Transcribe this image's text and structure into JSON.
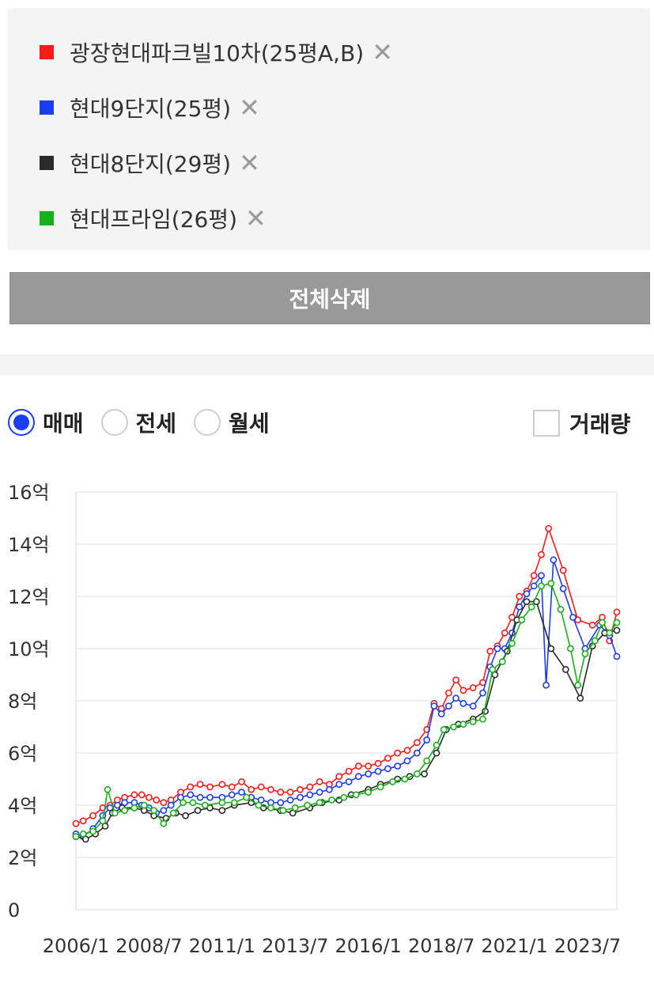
{
  "legend": {
    "items": [
      {
        "label": "광장현대파크빌10차(25평A,B)",
        "color": "#ff1a1a",
        "close_icon": "close-x-icon"
      },
      {
        "label": "현대9단지(25평)",
        "color": "#1b3df0",
        "close_icon": "close-x-icon"
      },
      {
        "label": "현대8단지(29평)",
        "color": "#2a2a2a",
        "close_icon": "close-x-icon"
      },
      {
        "label": "현대프라임(26평)",
        "color": "#19b019",
        "close_icon": "close-x-icon"
      }
    ],
    "close_glyph": "✕"
  },
  "delete_all_label": "전체삭제",
  "deal_types": [
    {
      "label": "매매",
      "checked": true
    },
    {
      "label": "전세",
      "checked": false
    },
    {
      "label": "월세",
      "checked": false
    }
  ],
  "volume_label": "거래량",
  "chart_data": {
    "type": "line",
    "y_ticks": [
      "0",
      "2억",
      "4억",
      "6억",
      "8억",
      "10억",
      "12억",
      "14억",
      "16억"
    ],
    "x_ticks": [
      "2006/1",
      "2008/7",
      "2011/1",
      "2013/7",
      "2016/1",
      "2018/7",
      "2021/1",
      "2023/7"
    ],
    "ylim": [
      0,
      16
    ],
    "xlim": [
      "2006/1",
      "2024/7"
    ],
    "grid": true,
    "marker": "circle",
    "series": [
      {
        "name": "광장현대파크빌10차(25평A,B)",
        "color": "#ff1a1a",
        "points": [
          [
            "2006/1",
            3.3
          ],
          [
            "2006/4",
            3.4
          ],
          [
            "2006/8",
            3.6
          ],
          [
            "2006/12",
            3.9
          ],
          [
            "2007/3",
            4.0
          ],
          [
            "2007/6",
            4.2
          ],
          [
            "2007/9",
            4.3
          ],
          [
            "2008/1",
            4.4
          ],
          [
            "2008/4",
            4.4
          ],
          [
            "2008/7",
            4.3
          ],
          [
            "2008/10",
            4.2
          ],
          [
            "2009/1",
            4.1
          ],
          [
            "2009/4",
            4.2
          ],
          [
            "2009/8",
            4.5
          ],
          [
            "2009/12",
            4.7
          ],
          [
            "2010/4",
            4.8
          ],
          [
            "2010/8",
            4.7
          ],
          [
            "2011/1",
            4.8
          ],
          [
            "2011/5",
            4.7
          ],
          [
            "2011/9",
            4.9
          ],
          [
            "2012/1",
            4.6
          ],
          [
            "2012/5",
            4.7
          ],
          [
            "2012/9",
            4.6
          ],
          [
            "2013/1",
            4.5
          ],
          [
            "2013/5",
            4.5
          ],
          [
            "2013/9",
            4.6
          ],
          [
            "2014/1",
            4.7
          ],
          [
            "2014/5",
            4.9
          ],
          [
            "2014/9",
            4.8
          ],
          [
            "2015/1",
            5.1
          ],
          [
            "2015/5",
            5.3
          ],
          [
            "2015/9",
            5.5
          ],
          [
            "2016/1",
            5.5
          ],
          [
            "2016/5",
            5.6
          ],
          [
            "2016/9",
            5.8
          ],
          [
            "2017/1",
            6.0
          ],
          [
            "2017/5",
            6.1
          ],
          [
            "2017/9",
            6.4
          ],
          [
            "2018/1",
            6.9
          ],
          [
            "2018/4",
            7.9
          ],
          [
            "2018/7",
            7.7
          ],
          [
            "2018/10",
            8.3
          ],
          [
            "2019/1",
            8.8
          ],
          [
            "2019/4",
            8.4
          ],
          [
            "2019/8",
            8.5
          ],
          [
            "2019/12",
            8.7
          ],
          [
            "2020/3",
            9.9
          ],
          [
            "2020/6",
            10.1
          ],
          [
            "2020/9",
            10.6
          ],
          [
            "2020/12",
            11.2
          ],
          [
            "2021/3",
            12.0
          ],
          [
            "2021/6",
            12.2
          ],
          [
            "2021/9",
            12.8
          ],
          [
            "2021/12",
            13.6
          ],
          [
            "2022/3",
            14.6
          ],
          [
            "2022/9",
            13.0
          ],
          [
            "2023/3",
            11.1
          ],
          [
            "2023/9",
            10.9
          ],
          [
            "2024/1",
            11.2
          ],
          [
            "2024/4",
            10.3
          ],
          [
            "2024/7",
            11.4
          ]
        ]
      },
      {
        "name": "현대9단지(25평)",
        "color": "#1b3df0",
        "points": [
          [
            "2006/1",
            2.9
          ],
          [
            "2006/4",
            2.8
          ],
          [
            "2006/8",
            3.1
          ],
          [
            "2006/12",
            3.6
          ],
          [
            "2007/3",
            3.9
          ],
          [
            "2007/6",
            4.0
          ],
          [
            "2007/9",
            4.1
          ],
          [
            "2008/1",
            4.1
          ],
          [
            "2008/4",
            4.0
          ],
          [
            "2008/7",
            3.9
          ],
          [
            "2008/10",
            3.7
          ],
          [
            "2009/1",
            3.8
          ],
          [
            "2009/4",
            4.0
          ],
          [
            "2009/8",
            4.3
          ],
          [
            "2009/12",
            4.4
          ],
          [
            "2010/4",
            4.3
          ],
          [
            "2010/8",
            4.3
          ],
          [
            "2011/1",
            4.3
          ],
          [
            "2011/5",
            4.4
          ],
          [
            "2011/9",
            4.5
          ],
          [
            "2012/1",
            4.3
          ],
          [
            "2012/5",
            4.2
          ],
          [
            "2012/9",
            4.1
          ],
          [
            "2013/1",
            4.1
          ],
          [
            "2013/5",
            4.2
          ],
          [
            "2013/9",
            4.3
          ],
          [
            "2014/1",
            4.4
          ],
          [
            "2014/5",
            4.5
          ],
          [
            "2014/9",
            4.6
          ],
          [
            "2015/1",
            4.8
          ],
          [
            "2015/5",
            4.9
          ],
          [
            "2015/9",
            5.1
          ],
          [
            "2016/1",
            5.2
          ],
          [
            "2016/5",
            5.3
          ],
          [
            "2016/9",
            5.4
          ],
          [
            "2017/1",
            5.5
          ],
          [
            "2017/5",
            5.7
          ],
          [
            "2017/9",
            6.0
          ],
          [
            "2018/1",
            6.5
          ],
          [
            "2018/4",
            7.8
          ],
          [
            "2018/7",
            7.5
          ],
          [
            "2018/10",
            7.8
          ],
          [
            "2019/1",
            8.1
          ],
          [
            "2019/4",
            7.9
          ],
          [
            "2019/8",
            7.8
          ],
          [
            "2019/12",
            8.3
          ],
          [
            "2020/3",
            9.3
          ],
          [
            "2020/6",
            10.0
          ],
          [
            "2020/9",
            10.0
          ],
          [
            "2020/12",
            10.6
          ],
          [
            "2021/3",
            11.6
          ],
          [
            "2021/6",
            12.1
          ],
          [
            "2021/9",
            12.4
          ],
          [
            "2021/12",
            12.8
          ],
          [
            "2022/2",
            8.6
          ],
          [
            "2022/5",
            13.4
          ],
          [
            "2022/9",
            12.3
          ],
          [
            "2023/1",
            11.2
          ],
          [
            "2023/6",
            10.0
          ],
          [
            "2023/12",
            10.9
          ],
          [
            "2024/4",
            10.5
          ],
          [
            "2024/7",
            9.7
          ]
        ]
      },
      {
        "name": "현대8단지(29평)",
        "color": "#2a2a2a",
        "points": [
          [
            "2006/1",
            2.8
          ],
          [
            "2006/5",
            2.7
          ],
          [
            "2006/9",
            2.9
          ],
          [
            "2007/1",
            3.2
          ],
          [
            "2007/4",
            3.7
          ],
          [
            "2007/8",
            3.9
          ],
          [
            "2008/1",
            3.9
          ],
          [
            "2008/5",
            3.8
          ],
          [
            "2008/9",
            3.6
          ],
          [
            "2009/2",
            3.5
          ],
          [
            "2009/6",
            3.7
          ],
          [
            "2009/10",
            3.6
          ],
          [
            "2010/3",
            3.8
          ],
          [
            "2010/8",
            3.9
          ],
          [
            "2011/1",
            3.8
          ],
          [
            "2011/6",
            4.0
          ],
          [
            "2012/1",
            4.1
          ],
          [
            "2012/6",
            3.9
          ],
          [
            "2013/1",
            3.8
          ],
          [
            "2013/6",
            3.7
          ],
          [
            "2014/1",
            3.9
          ],
          [
            "2014/6",
            4.1
          ],
          [
            "2015/1",
            4.2
          ],
          [
            "2015/6",
            4.4
          ],
          [
            "2016/1",
            4.6
          ],
          [
            "2016/6",
            4.8
          ],
          [
            "2017/1",
            5.0
          ],
          [
            "2017/6",
            5.1
          ],
          [
            "2017/12",
            5.2
          ],
          [
            "2018/5",
            6.0
          ],
          [
            "2018/9",
            6.9
          ],
          [
            "2019/2",
            7.1
          ],
          [
            "2019/8",
            7.3
          ],
          [
            "2020/1",
            7.6
          ],
          [
            "2020/5",
            9.0
          ],
          [
            "2020/10",
            9.9
          ],
          [
            "2021/2",
            11.1
          ],
          [
            "2021/6",
            11.8
          ],
          [
            "2021/10",
            11.8
          ],
          [
            "2022/4",
            10.0
          ],
          [
            "2022/10",
            9.2
          ],
          [
            "2023/4",
            8.1
          ],
          [
            "2023/9",
            10.1
          ],
          [
            "2024/2",
            10.6
          ],
          [
            "2024/7",
            10.7
          ]
        ]
      },
      {
        "name": "현대프라임(26평)",
        "color": "#19b019",
        "points": [
          [
            "2006/1",
            2.8
          ],
          [
            "2006/4",
            2.9
          ],
          [
            "2006/8",
            3.0
          ],
          [
            "2006/12",
            3.4
          ],
          [
            "2007/2",
            4.6
          ],
          [
            "2007/5",
            3.7
          ],
          [
            "2007/9",
            3.8
          ],
          [
            "2008/1",
            3.9
          ],
          [
            "2008/5",
            4.0
          ],
          [
            "2008/9",
            3.8
          ],
          [
            "2009/1",
            3.3
          ],
          [
            "2009/5",
            3.7
          ],
          [
            "2009/9",
            4.1
          ],
          [
            "2010/1",
            4.1
          ],
          [
            "2010/6",
            4.0
          ],
          [
            "2011/1",
            4.1
          ],
          [
            "2011/6",
            4.1
          ],
          [
            "2011/11",
            4.3
          ],
          [
            "2012/4",
            4.0
          ],
          [
            "2012/9",
            3.9
          ],
          [
            "2013/2",
            3.8
          ],
          [
            "2013/7",
            3.9
          ],
          [
            "2013/12",
            4.0
          ],
          [
            "2014/5",
            4.1
          ],
          [
            "2014/10",
            4.2
          ],
          [
            "2015/3",
            4.3
          ],
          [
            "2015/8",
            4.4
          ],
          [
            "2016/1",
            4.5
          ],
          [
            "2016/6",
            4.7
          ],
          [
            "2016/11",
            4.9
          ],
          [
            "2017/4",
            5.0
          ],
          [
            "2017/9",
            5.2
          ],
          [
            "2018/1",
            5.7
          ],
          [
            "2018/5",
            6.3
          ],
          [
            "2018/8",
            6.9
          ],
          [
            "2018/12",
            7.0
          ],
          [
            "2019/4",
            7.1
          ],
          [
            "2019/8",
            7.2
          ],
          [
            "2019/12",
            7.3
          ],
          [
            "2020/4",
            9.2
          ],
          [
            "2020/8",
            9.5
          ],
          [
            "2020/12",
            10.2
          ],
          [
            "2021/4",
            11.1
          ],
          [
            "2021/8",
            11.6
          ],
          [
            "2021/12",
            12.4
          ],
          [
            "2022/4",
            12.5
          ],
          [
            "2022/8",
            11.5
          ],
          [
            "2022/12",
            10.0
          ],
          [
            "2023/3",
            8.6
          ],
          [
            "2023/6",
            9.8
          ],
          [
            "2023/10",
            10.3
          ],
          [
            "2024/1",
            11.0
          ],
          [
            "2024/4",
            10.6
          ],
          [
            "2024/7",
            11.0
          ]
        ]
      }
    ]
  }
}
